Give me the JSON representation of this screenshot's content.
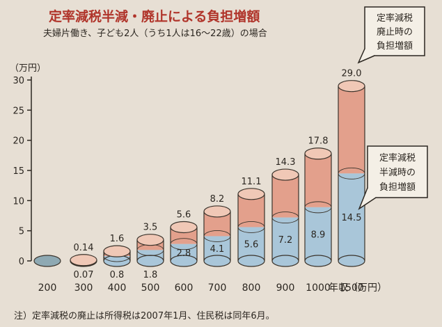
{
  "chart_data": {
    "type": "bar",
    "stacked": true,
    "title": "定率減税半減・廃止による負担増額",
    "subtitle": "夫婦片働き、子ども2人（うち1人は16〜22歳）の場合",
    "ylabel": "（万円）",
    "xlabel": "年収（万円）",
    "ylim": [
      0,
      30
    ],
    "yticks": [
      0,
      5,
      10,
      15,
      20,
      25,
      30
    ],
    "categories": [
      "200",
      "300",
      "400",
      "500",
      "600",
      "700",
      "800",
      "900",
      "1000",
      "1500"
    ],
    "series": [
      {
        "name": "定率減税半減時の負担増額",
        "values": [
          0,
          0.07,
          0.8,
          1.8,
          2.8,
          4.1,
          5.6,
          7.2,
          8.9,
          14.5
        ],
        "labels": [
          "",
          "0.07",
          "0.8",
          "1.8",
          "2.8",
          "4.1",
          "5.6",
          "7.2",
          "8.9",
          "14.5"
        ],
        "color": "#a9c6d9"
      },
      {
        "name": "定率減税廃止時の負担増額",
        "totals": [
          0,
          0.14,
          1.6,
          3.5,
          5.6,
          8.2,
          11.1,
          14.3,
          17.8,
          29.0
        ],
        "labels": [
          "",
          "0.14",
          "1.6",
          "3.5",
          "5.6",
          "8.2",
          "11.1",
          "14.3",
          "17.8",
          "29.0"
        ],
        "color": "#e3a08c"
      }
    ],
    "callouts": {
      "abolish": [
        "定率減税",
        "廃止時の",
        "負担増額"
      ],
      "halve": [
        "定率減税",
        "半減時の",
        "負担増額"
      ]
    },
    "note": "注）定率減税の廃止は所得税は2007年1月、住民税は同年6月。",
    "grid": false
  }
}
